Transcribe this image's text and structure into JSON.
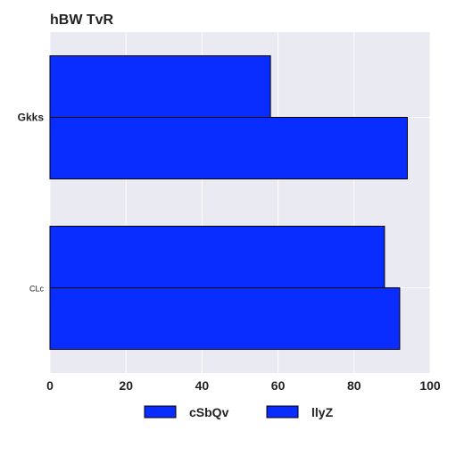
{
  "chart_data": {
    "type": "bar",
    "orientation": "horizontal",
    "title": "hBW TvR",
    "categories": [
      "Gkks",
      "CLc"
    ],
    "series": [
      {
        "name": "cSbQv",
        "values": [
          58,
          88
        ],
        "color": "#0a2dff"
      },
      {
        "name": "llyZ",
        "values": [
          94,
          92
        ],
        "color": "#0a2dff"
      }
    ],
    "xlim": [
      0,
      100
    ],
    "xticks": [
      0,
      20,
      40,
      60,
      80,
      100
    ],
    "grid": true,
    "legend_position": "bottom"
  }
}
